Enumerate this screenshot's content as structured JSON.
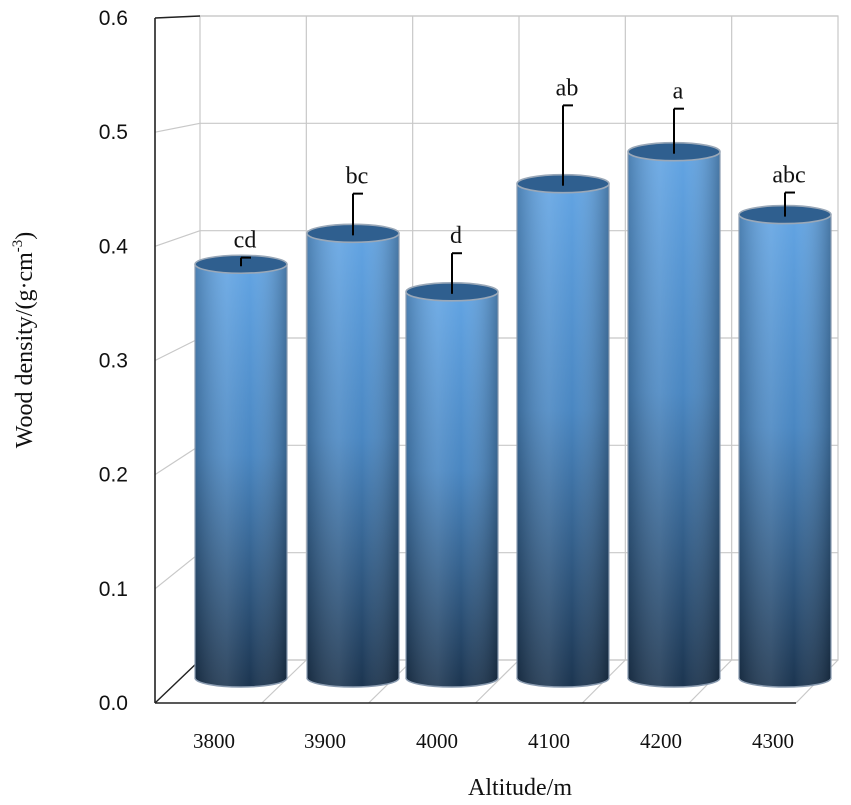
{
  "chart_data": {
    "type": "bar",
    "style": "3d-cylinder",
    "categories": [
      "3800",
      "3900",
      "4000",
      "4100",
      "4200",
      "4300"
    ],
    "values": [
      0.375,
      0.403,
      0.35,
      0.448,
      0.477,
      0.42
    ],
    "error_upper": [
      0.381,
      0.439,
      0.385,
      0.519,
      0.516,
      0.44
    ],
    "significance_letters": [
      "cd",
      "bc",
      "d",
      "ab",
      "a",
      "abc"
    ],
    "xlabel": "Altitude/m",
    "ylabel": "Wood density/(g·cm",
    "ylabel_superscript": "-3",
    "ylabel_suffix": ")",
    "ylim": [
      0.0,
      0.6
    ],
    "yticks": [
      "0.0",
      "0.1",
      "0.2",
      "0.3",
      "0.4",
      "0.5",
      "0.6"
    ],
    "grid": true,
    "bar_color": "#5b9bd5",
    "bar_color_dark": "#1f3a5a",
    "grid_color": "#c8c8c8"
  }
}
